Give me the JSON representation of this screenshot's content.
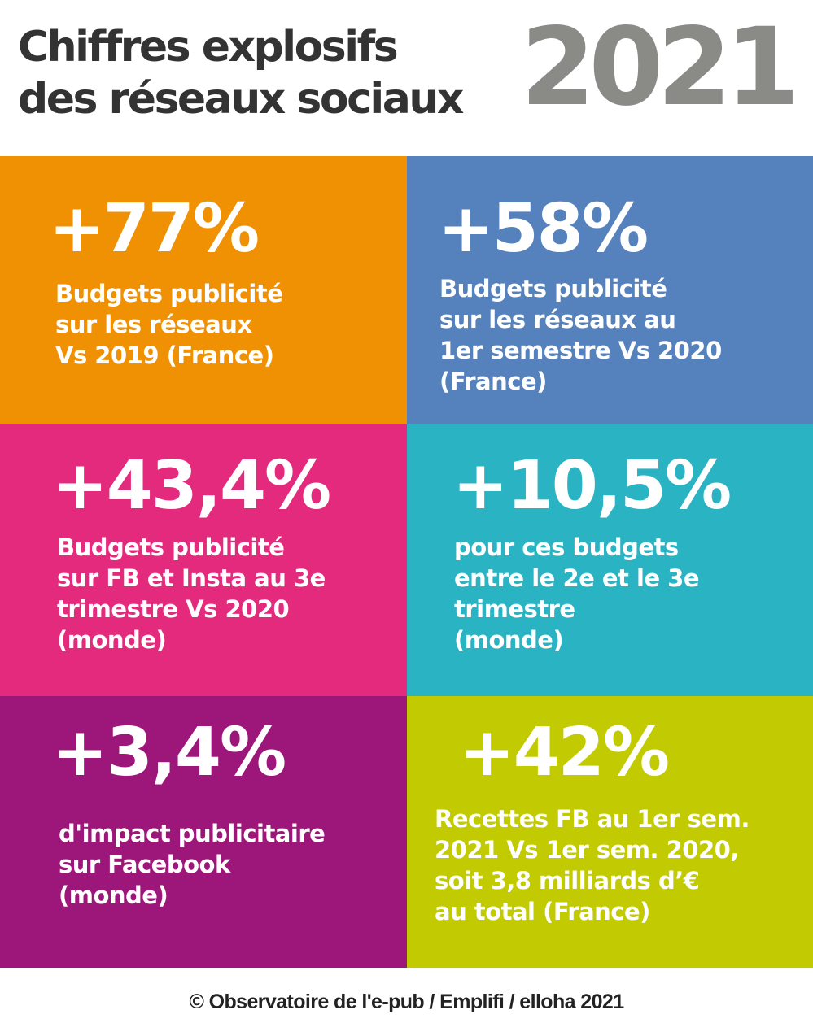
{
  "header": {
    "title_lines": [
      "Chiffres explosifs",
      "des réseaux sociaux"
    ],
    "year": "2021"
  },
  "tiles": [
    {
      "color": "#ef9103",
      "value": "+77%",
      "lines": [
        "Budgets publicité",
        "sur les réseaux",
        "Vs 2019 (France)"
      ]
    },
    {
      "color": "#5581bd",
      "value": "+58%",
      "lines": [
        "Budgets publicité",
        "sur les réseaux au",
        "1er semestre Vs 2020",
        "(France)"
      ]
    },
    {
      "color": "#e42a7c",
      "value": "+43,4%",
      "lines": [
        "Budgets publicité",
        "sur FB et Insta au 3e",
        "trimestre Vs 2020",
        "(monde)"
      ]
    },
    {
      "color": "#2ab3c2",
      "value": "+10,5%",
      "lines": [
        "pour ces budgets",
        "entre le 2e et le 3e",
        "trimestre",
        "(monde)"
      ]
    },
    {
      "color": "#9d177b",
      "value": "+3,4%",
      "lines": [
        "d'impact publicitaire",
        "sur Facebook",
        "(monde)"
      ]
    },
    {
      "color": "#c2cb02",
      "value": "+42%",
      "lines": [
        "Recettes FB au 1er sem.",
        "2021 Vs 1er sem. 2020,",
        "soit 3,8 milliards d’€",
        "au total (France)"
      ]
    }
  ],
  "footer": {
    "credit": "© Observatoire de l'e-pub / Emplifi  / elloha 2021"
  }
}
